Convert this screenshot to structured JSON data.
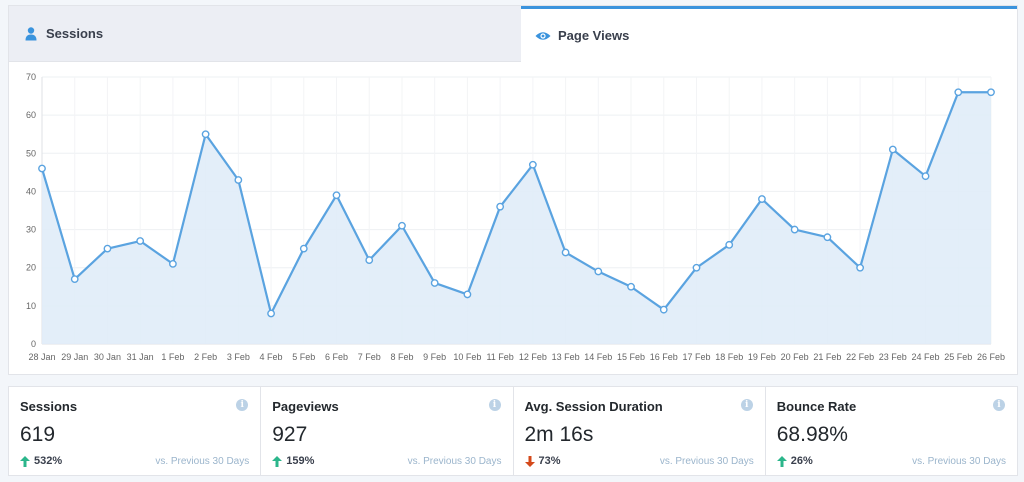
{
  "tabs": {
    "sessions": {
      "label": "Sessions",
      "icon": "user-icon"
    },
    "pageviews": {
      "label": "Page Views",
      "icon": "eye-icon",
      "active": true
    }
  },
  "colors": {
    "accent": "#3a93dd",
    "line": "#5aa3e0",
    "fill": "#e0ecf8",
    "up": "#2bb68b",
    "down": "#d4491b"
  },
  "chart_data": {
    "type": "area",
    "x": [
      "28 Jan",
      "29 Jan",
      "30 Jan",
      "31 Jan",
      "1 Feb",
      "2 Feb",
      "3 Feb",
      "4 Feb",
      "5 Feb",
      "6 Feb",
      "7 Feb",
      "8 Feb",
      "9 Feb",
      "10 Feb",
      "11 Feb",
      "12 Feb",
      "13 Feb",
      "14 Feb",
      "15 Feb",
      "16 Feb",
      "17 Feb",
      "18 Feb",
      "19 Feb",
      "20 Feb",
      "21 Feb",
      "22 Feb",
      "23 Feb",
      "24 Feb",
      "25 Feb",
      "26 Feb"
    ],
    "values": [
      46,
      17,
      25,
      27,
      21,
      55,
      43,
      8,
      25,
      39,
      22,
      31,
      16,
      13,
      36,
      47,
      24,
      19,
      15,
      9,
      20,
      26,
      38,
      30,
      28,
      20,
      51,
      44,
      66,
      66
    ],
    "yticks": [
      0,
      10,
      20,
      30,
      40,
      50,
      60,
      70
    ],
    "ylim": [
      0,
      70
    ],
    "grid": true
  },
  "stats": [
    {
      "label": "Sessions",
      "value": "619",
      "change": "532%",
      "direction": "up",
      "compare": "vs. Previous 30 Days"
    },
    {
      "label": "Pageviews",
      "value": "927",
      "change": "159%",
      "direction": "up",
      "compare": "vs. Previous 30 Days"
    },
    {
      "label": "Avg. Session Duration",
      "value": "2m 16s",
      "change": "73%",
      "direction": "down",
      "compare": "vs. Previous 30 Days"
    },
    {
      "label": "Bounce Rate",
      "value": "68.98%",
      "change": "26%",
      "direction": "up",
      "compare": "vs. Previous 30 Days"
    }
  ]
}
